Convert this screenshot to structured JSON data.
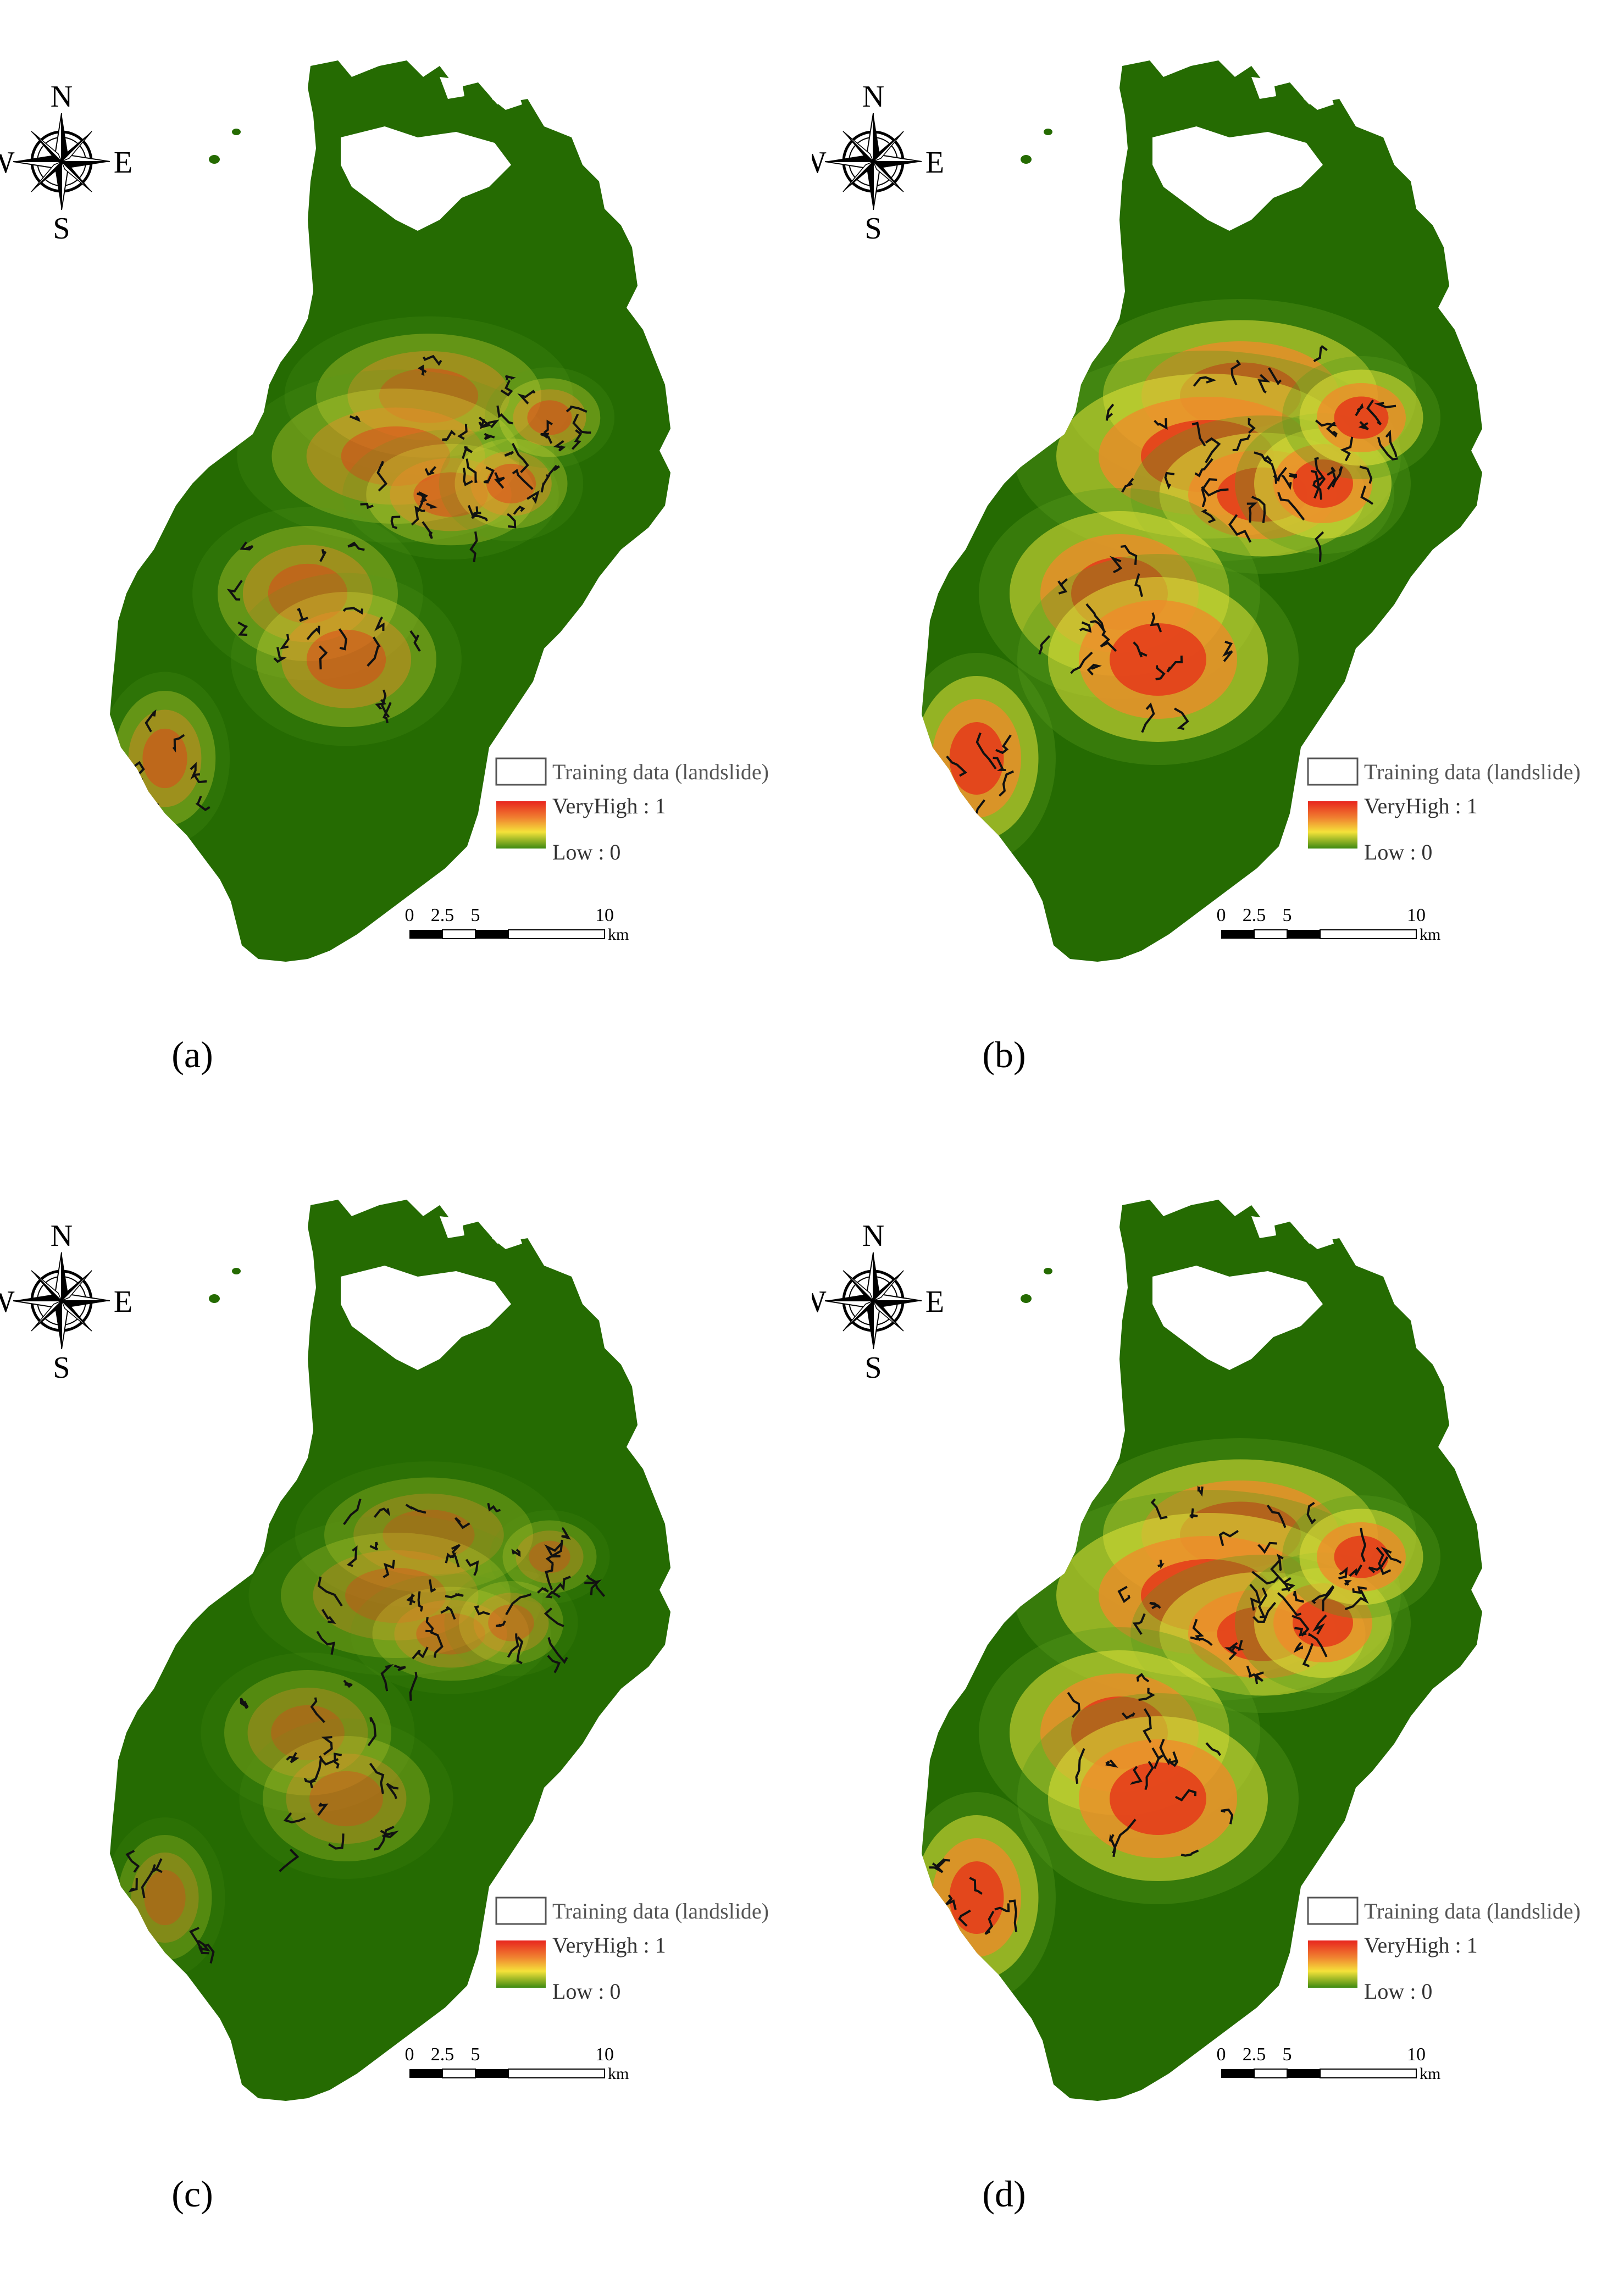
{
  "panels": [
    {
      "id": "a",
      "caption": "(a)",
      "intensity": 0.55
    },
    {
      "id": "b",
      "caption": "(b)",
      "intensity": 1.0
    },
    {
      "id": "c",
      "caption": "(c)",
      "intensity": 0.4
    },
    {
      "id": "d",
      "caption": "(d)",
      "intensity": 1.0
    }
  ],
  "compass": {
    "north": "N",
    "south": "S",
    "east": "E",
    "west": "W"
  },
  "legend": {
    "training_label": "Training data (landslide)",
    "high_label": "VeryHigh : 1",
    "low_label": "Low : 0",
    "colors": {
      "high": "#e8261e",
      "mid_high": "#f08030",
      "mid": "#f5e23a",
      "low": "#3e8a12"
    }
  },
  "scale_bar": {
    "ticks": [
      "0",
      "2.5",
      "5",
      "10"
    ],
    "unit": "km"
  },
  "colors": {
    "background_green": "#256b02",
    "green_mid": "#5a9a1e",
    "yellow": "#e2e23a",
    "orange": "#f08a2a",
    "red": "#e43a1a",
    "landslide": "#111111"
  }
}
